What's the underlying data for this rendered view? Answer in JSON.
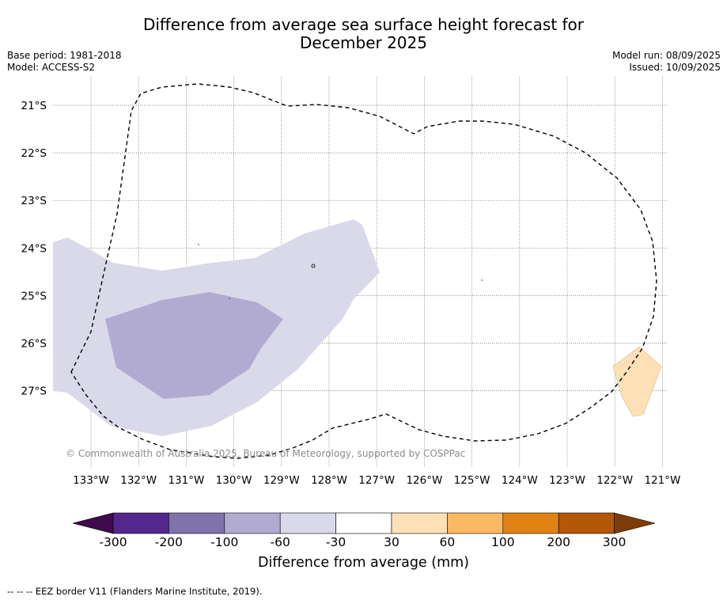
{
  "title": {
    "line1": "Difference from average sea surface height forecast for",
    "line2": "December 2025"
  },
  "meta_left": {
    "base_period": "Base period: 1981-2018",
    "model": "Model: ACCESS-S2"
  },
  "meta_right": {
    "model_run": "Model run: 08/09/2025",
    "issued": "Issued: 10/09/2025"
  },
  "map": {
    "latitude_labels": [
      "21°S",
      "22°S",
      "23°S",
      "24°S",
      "25°S",
      "26°S",
      "27°S"
    ],
    "longitude_labels": [
      "133°W",
      "132°W",
      "131°W",
      "130°W",
      "129°W",
      "128°W",
      "127°W",
      "126°W",
      "125°W",
      "124°W",
      "123°W",
      "122°W",
      "121°W"
    ],
    "copyright": "© Commonwealth of Australia 2025, Bureau of Meteorology, supported by COSPPac",
    "regions": [
      {
        "name": "-60 to -30 mm anomaly",
        "color": "#d9d9ea"
      },
      {
        "name": "-100 to -60 mm anomaly",
        "color": "#b1abd1"
      },
      {
        "name": "30 to 60 mm anomaly",
        "color": "#fee0b6"
      }
    ],
    "eez_border_style": "dashed black"
  },
  "colorbar": {
    "bins": [
      {
        "color": "#3f0a4e"
      },
      {
        "color": "#54278f"
      },
      {
        "color": "#8073ac"
      },
      {
        "color": "#b1abd1"
      },
      {
        "color": "#d9d9ea"
      },
      {
        "color": "#ffffff"
      },
      {
        "color": "#fee0b6"
      },
      {
        "color": "#fdb863"
      },
      {
        "color": "#e08214"
      },
      {
        "color": "#b35806"
      },
      {
        "color": "#7f3b08"
      }
    ],
    "tick_labels": [
      "-300",
      "-200",
      "-100",
      "-60",
      "-30",
      "30",
      "60",
      "100",
      "200",
      "300"
    ],
    "label": "Difference from average (mm)"
  },
  "footnote": "--  --  -- EEZ border V11 (Flanders Marine Institute, 2019)."
}
